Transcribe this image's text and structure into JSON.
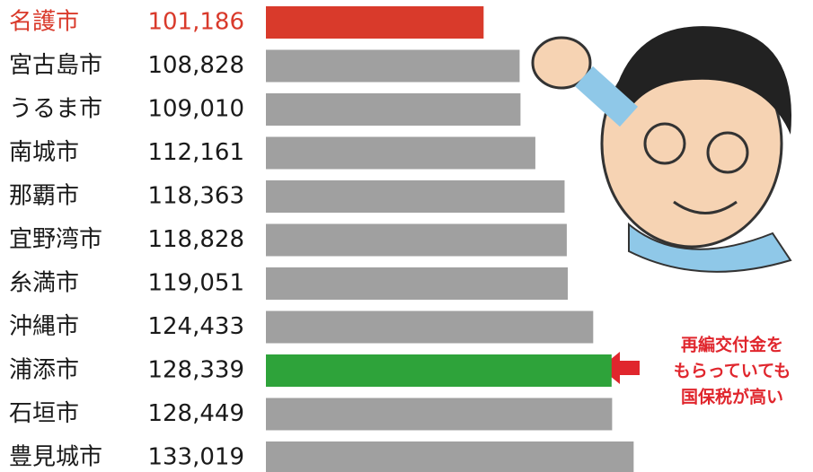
{
  "chart_data": {
    "type": "bar",
    "orientation": "horizontal",
    "categories": [
      "名護市",
      "宮古島市",
      "うるま市",
      "南城市",
      "那覇市",
      "宜野湾市",
      "糸満市",
      "沖縄市",
      "浦添市",
      "石垣市",
      "豊見城市"
    ],
    "values": [
      101186,
      108828,
      109010,
      112161,
      118363,
      118828,
      119051,
      124433,
      128339,
      128449,
      133019
    ],
    "value_labels": [
      "101,186",
      "108,828",
      "109,010",
      "112,161",
      "118,363",
      "118,828",
      "119,051",
      "124,433",
      "128,339",
      "128,449",
      "133,019"
    ],
    "colors": [
      "#d93a2b",
      "#a0a0a0",
      "#a0a0a0",
      "#a0a0a0",
      "#a0a0a0",
      "#a0a0a0",
      "#a0a0a0",
      "#a0a0a0",
      "#2ea33a",
      "#a0a0a0",
      "#a0a0a0"
    ],
    "label_colors": [
      "#d93a2b",
      "#1a1a1a",
      "#1a1a1a",
      "#1a1a1a",
      "#1a1a1a",
      "#1a1a1a",
      "#1a1a1a",
      "#1a1a1a",
      "#1a1a1a",
      "#1a1a1a",
      "#1a1a1a"
    ],
    "xlim": [
      55000,
      140000
    ],
    "annotation": [
      "再編交付金を",
      "もらっていても",
      "国保税が高い"
    ]
  }
}
